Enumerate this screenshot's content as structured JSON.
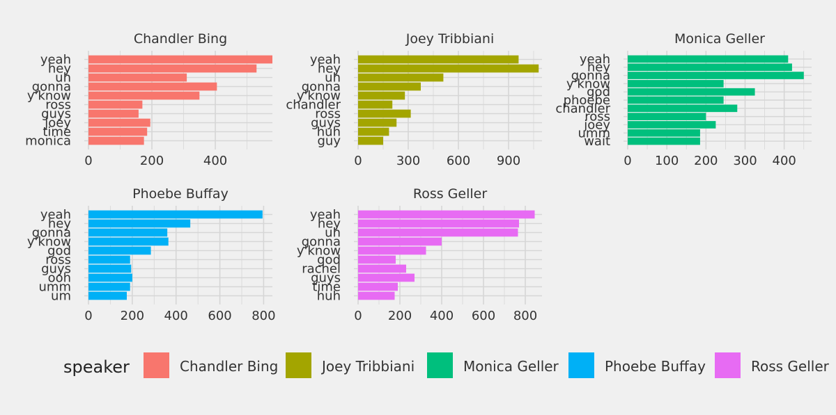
{
  "chart_data": {
    "type": "bar",
    "orientation": "horizontal",
    "grid": true,
    "legend": {
      "title": "speaker",
      "placement": "bottom",
      "entries": [
        {
          "name": "Chandler Bing",
          "color": "#F8766D"
        },
        {
          "name": "Joey Tribbiani",
          "color": "#A3A500"
        },
        {
          "name": "Monica Geller",
          "color": "#00BF7D"
        },
        {
          "name": "Phoebe Buffay",
          "color": "#00B0F6"
        },
        {
          "name": "Ross Geller",
          "color": "#E76BF3"
        }
      ]
    },
    "panels": [
      {
        "title": "Chandler Bing",
        "color": "#F8766D",
        "categories": [
          "yeah",
          "hey",
          "uh",
          "gonna",
          "y'know",
          "ross",
          "guys",
          "joey",
          "time",
          "monica"
        ],
        "values": [
          580,
          530,
          310,
          405,
          350,
          170,
          158,
          195,
          185,
          175
        ],
        "xlim": [
          0,
          580
        ],
        "xticks": [
          0,
          200,
          400
        ]
      },
      {
        "title": "Joey Tribbiani",
        "color": "#A3A500",
        "categories": [
          "yeah",
          "hey",
          "uh",
          "gonna",
          "y'know",
          "chandler",
          "ross",
          "guys",
          "huh",
          "guy"
        ],
        "values": [
          960,
          1080,
          510,
          375,
          280,
          205,
          315,
          230,
          185,
          150
        ],
        "xlim": [
          0,
          1100
        ],
        "xticks": [
          0,
          300,
          600,
          900
        ]
      },
      {
        "title": "Monica Geller",
        "color": "#00BF7D",
        "categories": [
          "yeah",
          "hey",
          "gonna",
          "y'know",
          "god",
          "phoebe",
          "chandler",
          "ross",
          "joey",
          "umm",
          "wait"
        ],
        "values": [
          410,
          420,
          450,
          245,
          325,
          245,
          280,
          200,
          225,
          185,
          185
        ],
        "xlim": [
          0,
          470
        ],
        "xticks": [
          0,
          100,
          200,
          300,
          400
        ]
      },
      {
        "title": "Phoebe Buffay",
        "color": "#00B0F6",
        "categories": [
          "yeah",
          "hey",
          "gonna",
          "y'know",
          "god",
          "ross",
          "guys",
          "ooh",
          "umm",
          "um"
        ],
        "values": [
          795,
          465,
          360,
          365,
          285,
          190,
          195,
          200,
          190,
          175
        ],
        "xlim": [
          0,
          840
        ],
        "xticks": [
          0,
          200,
          400,
          600,
          800
        ]
      },
      {
        "title": "Ross Geller",
        "color": "#E76BF3",
        "categories": [
          "yeah",
          "hey",
          "uh",
          "gonna",
          "y'know",
          "god",
          "rachel",
          "guys",
          "time",
          "huh"
        ],
        "values": [
          845,
          770,
          765,
          400,
          325,
          180,
          230,
          270,
          190,
          175
        ],
        "xlim": [
          0,
          880
        ],
        "xticks": [
          0,
          200,
          400,
          600,
          800
        ]
      }
    ]
  }
}
